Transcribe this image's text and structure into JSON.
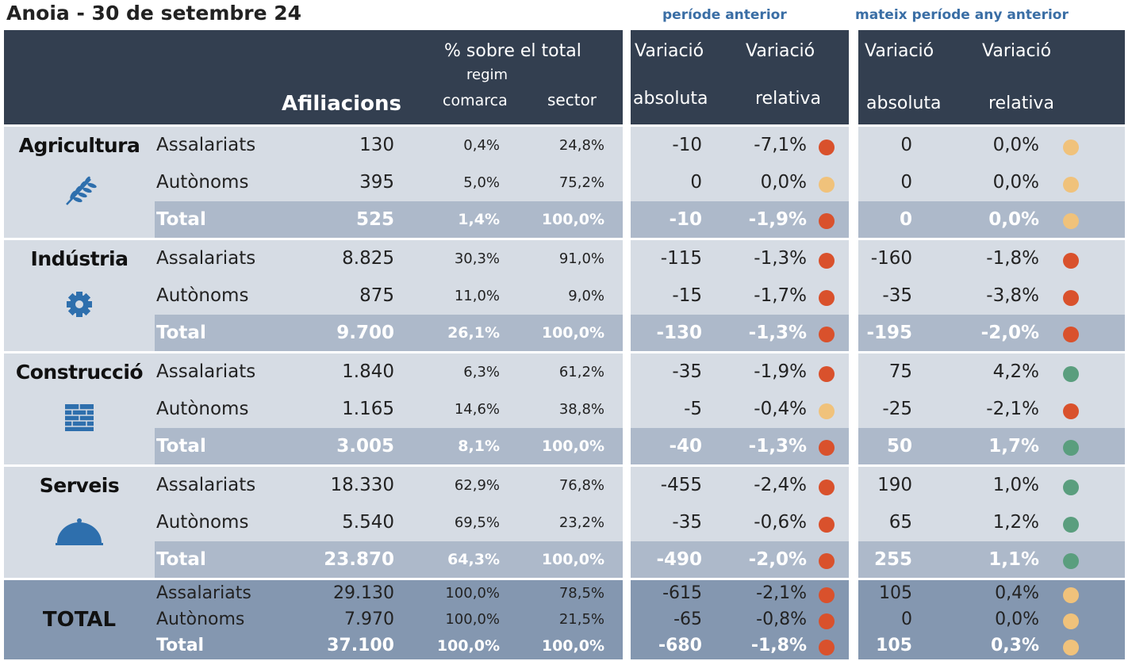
{
  "title": "Anoia - 30 de setembre 24",
  "groups": [
    "període anterior",
    "mateix període any anterior"
  ],
  "header": {
    "pct_total": "% sobre el total",
    "regim": "regim",
    "comarca": "comarca",
    "sector": "sector",
    "afiliacions": "Afiliacions",
    "prev": [
      {
        "top": "Variació",
        "bottom": "absoluta"
      },
      {
        "top": "Variació",
        "bottom": "relativa"
      }
    ],
    "yoy": [
      {
        "top": "Variació",
        "bottom": "absoluta"
      },
      {
        "top": "Variació",
        "bottom": "relativa"
      }
    ]
  },
  "sections": [
    {
      "name": "Agricultura",
      "rows": [
        {
          "type": "Assalariats",
          "cells": [
            "130",
            "0,4%",
            "24,8%",
            "-10",
            "-7,1%",
            "0",
            "0,0%"
          ],
          "dots": [
            "#d9512c",
            "#f0c27b"
          ]
        },
        {
          "type": "Autònoms",
          "cells": [
            "395",
            "5,0%",
            "75,2%",
            "0",
            "0,0%",
            "0",
            "0,0%"
          ],
          "dots": [
            "#f0c27b",
            "#f0c27b"
          ]
        },
        {
          "type": "Total",
          "cells": [
            "525",
            "1,4%",
            "100,0%",
            "-10",
            "-1,9%",
            "0",
            "0,0%"
          ],
          "dots": [
            "#d9512c",
            "#f0c27b"
          ]
        }
      ]
    },
    {
      "name": "Indústria",
      "rows": [
        {
          "type": "Assalariats",
          "cells": [
            "8.825",
            "30,3%",
            "91,0%",
            "-115",
            "-1,3%",
            "-160",
            "-1,8%"
          ],
          "dots": [
            "#d9512c",
            "#d9512c"
          ]
        },
        {
          "type": "Autònoms",
          "cells": [
            "875",
            "11,0%",
            "9,0%",
            "-15",
            "-1,7%",
            "-35",
            "-3,8%"
          ],
          "dots": [
            "#d9512c",
            "#d9512c"
          ]
        },
        {
          "type": "Total",
          "cells": [
            "9.700",
            "26,1%",
            "100,0%",
            "-130",
            "-1,3%",
            "-195",
            "-2,0%"
          ],
          "dots": [
            "#d9512c",
            "#d9512c"
          ]
        }
      ]
    },
    {
      "name": "Construcció",
      "rows": [
        {
          "type": "Assalariats",
          "cells": [
            "1.840",
            "6,3%",
            "61,2%",
            "-35",
            "-1,9%",
            "75",
            "4,2%"
          ],
          "dots": [
            "#d9512c",
            "#5a9e7e"
          ]
        },
        {
          "type": "Autònoms",
          "cells": [
            "1.165",
            "14,6%",
            "38,8%",
            "-5",
            "-0,4%",
            "-25",
            "-2,1%"
          ],
          "dots": [
            "#f0c27b",
            "#d9512c"
          ]
        },
        {
          "type": "Total",
          "cells": [
            "3.005",
            "8,1%",
            "100,0%",
            "-40",
            "-1,3%",
            "50",
            "1,7%"
          ],
          "dots": [
            "#d9512c",
            "#5a9e7e"
          ]
        }
      ]
    },
    {
      "name": "Serveis",
      "rows": [
        {
          "type": "Assalariats",
          "cells": [
            "18.330",
            "62,9%",
            "76,8%",
            "-455",
            "-2,4%",
            "190",
            "1,0%"
          ],
          "dots": [
            "#d9512c",
            "#5a9e7e"
          ]
        },
        {
          "type": "Autònoms",
          "cells": [
            "5.540",
            "69,5%",
            "23,2%",
            "-35",
            "-0,6%",
            "65",
            "1,2%"
          ],
          "dots": [
            "#d9512c",
            "#5a9e7e"
          ]
        },
        {
          "type": "Total",
          "cells": [
            "23.870",
            "64,3%",
            "100,0%",
            "-490",
            "-2,0%",
            "255",
            "1,1%"
          ],
          "dots": [
            "#d9512c",
            "#5a9e7e"
          ]
        }
      ]
    },
    {
      "name": "TOTAL",
      "rows": [
        {
          "type": "Assalariats",
          "cells": [
            "29.130",
            "100,0%",
            "78,5%",
            "-615",
            "-2,1%",
            "105",
            "0,4%"
          ],
          "dots": [
            "#d9512c",
            "#f0c27b"
          ]
        },
        {
          "type": "Autònoms",
          "cells": [
            "7.970",
            "100,0%",
            "21,5%",
            "-65",
            "-0,8%",
            "0",
            "0,0%"
          ],
          "dots": [
            "#d9512c",
            "#f0c27b"
          ]
        },
        {
          "type": "Total",
          "cells": [
            "37.100",
            "100,0%",
            "100,0%",
            "-680",
            "-1,8%",
            "105",
            "0,3%"
          ],
          "dots": [
            "#d9512c",
            "#f0c27b"
          ]
        }
      ]
    }
  ]
}
